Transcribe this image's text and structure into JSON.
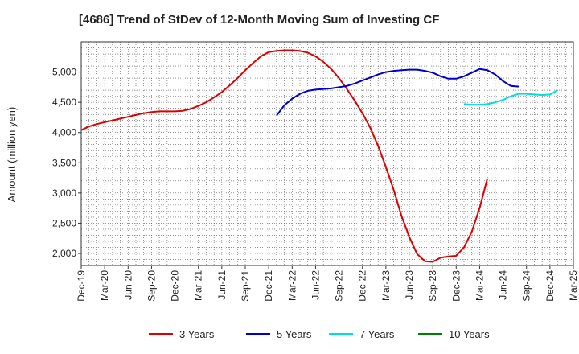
{
  "chart_data": {
    "type": "line",
    "title": "[4686]  Trend of StDev of 12-Month Moving Sum of Investing CF",
    "ylabel": "Amount (million yen)",
    "xlabel": "",
    "ylim": [
      1800,
      5500
    ],
    "yticks": [
      2000,
      2500,
      3000,
      3500,
      4000,
      4500,
      5000
    ],
    "ytick_labels": [
      "2,000",
      "2,500",
      "3,000",
      "3,500",
      "4,000",
      "4,500",
      "5,000"
    ],
    "x_tick_labels": [
      "Dec-19",
      "Mar-20",
      "Jun-20",
      "Sep-20",
      "Dec-20",
      "Mar-21",
      "Jun-21",
      "Sep-21",
      "Dec-21",
      "Mar-22",
      "Jun-22",
      "Sep-22",
      "Dec-22",
      "Mar-23",
      "Jun-23",
      "Sep-23",
      "Dec-23",
      "Mar-24",
      "Jun-24",
      "Sep-24",
      "Dec-24",
      "Mar-25"
    ],
    "grid": true,
    "legend_position": "bottom",
    "series": [
      {
        "name": "3 Years",
        "color": "#dd0000",
        "start_index": 0,
        "values": [
          4040,
          4100,
          4140,
          4170,
          4200,
          4230,
          4260,
          4290,
          4320,
          4340,
          4350,
          4350,
          4350,
          4360,
          4390,
          4440,
          4500,
          4580,
          4670,
          4780,
          4900,
          5030,
          5150,
          5260,
          5330,
          5350,
          5360,
          5360,
          5350,
          5320,
          5260,
          5170,
          5050,
          4900,
          4720,
          4530,
          4320,
          4080,
          3780,
          3430,
          3050,
          2620,
          2270,
          1990,
          1870,
          1860,
          1930,
          1950,
          1960,
          2100,
          2360,
          2750,
          3240
        ]
      },
      {
        "name": "5 Years",
        "color": "#0000cc",
        "start_index": 25,
        "values": [
          4280,
          4450,
          4560,
          4640,
          4690,
          4710,
          4720,
          4730,
          4750,
          4770,
          4810,
          4860,
          4910,
          4960,
          5000,
          5020,
          5030,
          5040,
          5040,
          5020,
          4990,
          4930,
          4890,
          4890,
          4930,
          4990,
          5050,
          5030,
          4960,
          4850,
          4770,
          4760
        ]
      },
      {
        "name": "7 Years",
        "color": "#00dddd",
        "start_index": 49,
        "values": [
          4470,
          4460,
          4460,
          4470,
          4500,
          4540,
          4600,
          4640,
          4640,
          4630,
          4620,
          4630,
          4700
        ]
      },
      {
        "name": "10 Years",
        "color": "#008000",
        "start_index": 0,
        "values": []
      }
    ]
  }
}
